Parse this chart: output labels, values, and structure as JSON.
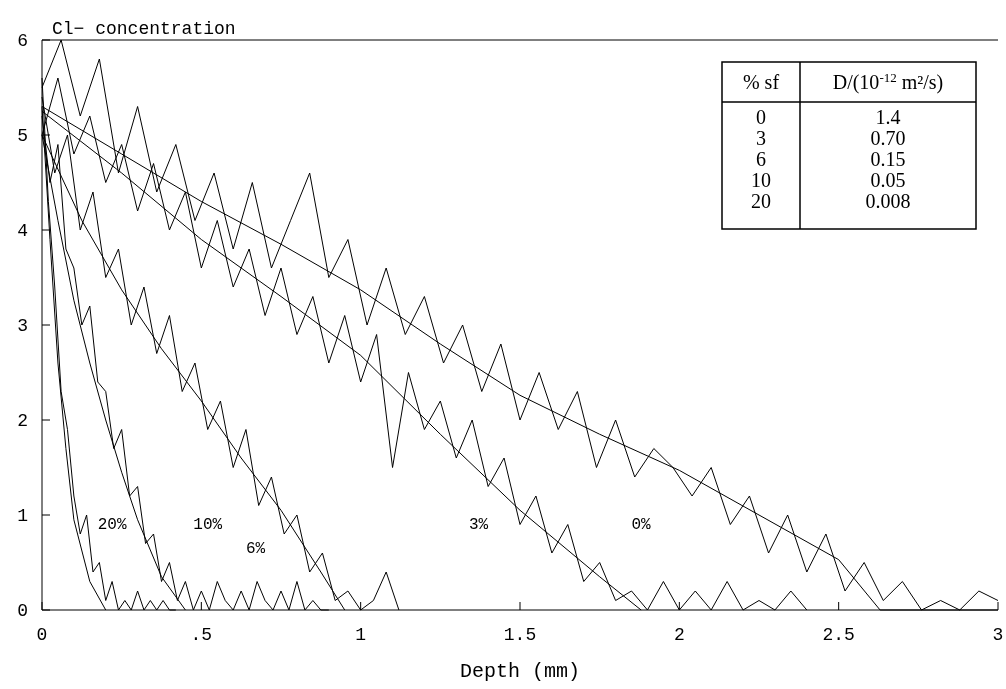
{
  "chart_data": {
    "type": "line",
    "ylabel": "Cl− concentration",
    "xlabel": "Depth (mm)",
    "xlim": [
      0,
      3
    ],
    "xticks": [
      0,
      {
        "value": 0.5,
        "label": ".5"
      },
      1,
      1.5,
      2,
      2.5,
      3
    ],
    "ylim": [
      0,
      6
    ],
    "yticks": [
      0,
      1,
      2,
      3,
      4,
      5,
      6
    ],
    "grid": false,
    "marker": "none",
    "line_style": "solid",
    "annotations": [
      "% sf",
      "D/(10$^{-12}$ m²/s)",
      "0",
      "1.4",
      "3",
      "0.70",
      "6",
      "0.15",
      "10",
      "0.05",
      "20",
      "0.008"
    ],
    "series": [
      {
        "name": "0%",
        "color": "#000000",
        "x": [
          0,
          0.06,
          0.12,
          0.18,
          0.24,
          0.3,
          0.36,
          0.42,
          0.48,
          0.54,
          0.6,
          0.66,
          0.72,
          0.78,
          0.84,
          0.9,
          0.96,
          1.02,
          1.08,
          1.14,
          1.2,
          1.26,
          1.32,
          1.38,
          1.44,
          1.5,
          1.56,
          1.62,
          1.68,
          1.74,
          1.8,
          1.86,
          1.92,
          1.98,
          2.04,
          2.1,
          2.16,
          2.22,
          2.28,
          2.34,
          2.4,
          2.46,
          2.52,
          2.58,
          2.64,
          2.7,
          2.76,
          2.82,
          2.88,
          2.94,
          3.0
        ],
        "values": [
          5.5,
          6.0,
          5.2,
          5.8,
          4.6,
          5.3,
          4.4,
          4.9,
          4.1,
          4.6,
          3.8,
          4.5,
          3.6,
          4.1,
          4.6,
          3.5,
          3.9,
          3.0,
          3.6,
          2.9,
          3.3,
          2.6,
          3.0,
          2.3,
          2.8,
          2.0,
          2.5,
          1.9,
          2.3,
          1.5,
          2.0,
          1.4,
          1.7,
          1.5,
          1.2,
          1.5,
          0.9,
          1.2,
          0.6,
          1.0,
          0.4,
          0.8,
          0.2,
          0.5,
          0.1,
          0.3,
          0,
          0.1,
          0,
          0.2,
          0.1
        ]
      },
      {
        "color": "#000000",
        "x": [
          0,
          0.25,
          0.5,
          0.75,
          1,
          1.25,
          1.5,
          1.75,
          2,
          2.25,
          2.5,
          2.63,
          3
        ],
        "values": [
          5.3,
          4.8,
          4.3,
          3.85,
          3.37,
          2.8,
          2.26,
          1.85,
          1.47,
          1.0,
          0.53,
          0,
          0
        ]
      },
      {
        "name": "3%",
        "color": "#000000",
        "x": [
          0,
          0.05,
          0.1,
          0.15,
          0.2,
          0.25,
          0.3,
          0.35,
          0.4,
          0.45,
          0.5,
          0.55,
          0.6,
          0.65,
          0.7,
          0.75,
          0.8,
          0.85,
          0.9,
          0.95,
          1.0,
          1.05,
          1.1,
          1.15,
          1.2,
          1.25,
          1.3,
          1.35,
          1.4,
          1.45,
          1.5,
          1.55,
          1.6,
          1.65,
          1.7,
          1.75,
          1.8,
          1.85,
          1.9,
          1.95,
          2.0,
          2.05,
          2.1,
          2.15,
          2.2,
          2.25,
          2.3,
          2.35,
          2.4
        ],
        "values": [
          5.0,
          5.6,
          4.8,
          5.2,
          4.5,
          4.9,
          4.2,
          4.7,
          4.0,
          4.4,
          3.6,
          4.1,
          3.4,
          3.8,
          3.1,
          3.6,
          2.9,
          3.3,
          2.6,
          3.1,
          2.4,
          2.9,
          1.5,
          2.5,
          1.9,
          2.2,
          1.6,
          2.0,
          1.3,
          1.6,
          0.9,
          1.2,
          0.6,
          0.9,
          0.3,
          0.5,
          0.1,
          0.2,
          0,
          0.3,
          0,
          0.2,
          0,
          0.3,
          0,
          0.1,
          0,
          0.2,
          0
        ]
      },
      {
        "color": "#000000",
        "x": [
          0,
          0.25,
          0.5,
          0.75,
          1,
          1.25,
          1.5,
          1.75,
          1.88
        ],
        "values": [
          5.25,
          4.6,
          3.9,
          3.3,
          2.68,
          1.85,
          1.05,
          0.35,
          0
        ]
      },
      {
        "name": "6%",
        "color": "#000000",
        "x": [
          0,
          0.04,
          0.08,
          0.12,
          0.16,
          0.2,
          0.24,
          0.28,
          0.32,
          0.36,
          0.4,
          0.44,
          0.48,
          0.52,
          0.56,
          0.6,
          0.64,
          0.68,
          0.72,
          0.76,
          0.8,
          0.84,
          0.88,
          0.92,
          0.96,
          1.0,
          1.04,
          1.08,
          1.12
        ],
        "values": [
          5.4,
          4.6,
          5.0,
          4.0,
          4.4,
          3.5,
          3.8,
          3.0,
          3.4,
          2.7,
          3.1,
          2.3,
          2.6,
          1.9,
          2.2,
          1.5,
          1.9,
          1.1,
          1.4,
          0.8,
          1.0,
          0.4,
          0.6,
          0.1,
          0.2,
          0,
          0.1,
          0.4,
          0
        ]
      },
      {
        "color": "#000000",
        "x": [
          0,
          0.125,
          0.25,
          0.375,
          0.5,
          0.625,
          0.75,
          0.875,
          0.95
        ],
        "values": [
          5.0,
          4.1,
          3.37,
          2.75,
          2.2,
          1.6,
          1.05,
          0.4,
          0
        ]
      },
      {
        "name": "10%",
        "color": "#000000",
        "x": [
          0,
          0.025,
          0.05,
          0.075,
          0.1,
          0.125,
          0.15,
          0.175,
          0.2,
          0.225,
          0.25,
          0.275,
          0.3,
          0.325,
          0.35,
          0.375,
          0.4,
          0.425,
          0.45,
          0.475,
          0.5,
          0.525,
          0.55,
          0.575,
          0.6,
          0.625,
          0.65,
          0.675,
          0.7,
          0.725,
          0.75,
          0.775,
          0.8,
          0.825,
          0.85,
          0.875,
          0.9
        ],
        "values": [
          5.2,
          4.5,
          4.9,
          3.8,
          3.6,
          3.0,
          3.2,
          2.4,
          2.3,
          1.7,
          1.9,
          1.2,
          1.3,
          0.7,
          0.8,
          0.3,
          0.5,
          0.1,
          0.3,
          0,
          0.2,
          0,
          0.3,
          0.1,
          0,
          0.2,
          0,
          0.3,
          0.1,
          0,
          0.2,
          0,
          0.3,
          0,
          0.1,
          0,
          0
        ]
      },
      {
        "color": "#000000",
        "x": [
          0,
          0.05,
          0.1,
          0.15,
          0.2,
          0.25,
          0.3,
          0.375,
          0.45
        ],
        "values": [
          5.0,
          4.1,
          3.26,
          2.6,
          2.0,
          1.45,
          0.95,
          0.35,
          0
        ]
      },
      {
        "name": "20%",
        "color": "#000000",
        "x": [
          0,
          0.02,
          0.04,
          0.06,
          0.08,
          0.1,
          0.12,
          0.14,
          0.16,
          0.18,
          0.2,
          0.22,
          0.24,
          0.26,
          0.28,
          0.3,
          0.32,
          0.34,
          0.36,
          0.38,
          0.4,
          0.42
        ],
        "values": [
          5.6,
          4.3,
          3.4,
          2.3,
          1.9,
          1.2,
          0.8,
          1.0,
          0.4,
          0.5,
          0.1,
          0.3,
          0,
          0.1,
          0,
          0.2,
          0,
          0.1,
          0,
          0.1,
          0,
          0
        ]
      },
      {
        "color": "#000000",
        "x": [
          0,
          0.025,
          0.05,
          0.075,
          0.1,
          0.15,
          0.2
        ],
        "values": [
          5.3,
          3.9,
          2.6,
          1.7,
          0.95,
          0.3,
          0
        ]
      }
    ]
  }
}
